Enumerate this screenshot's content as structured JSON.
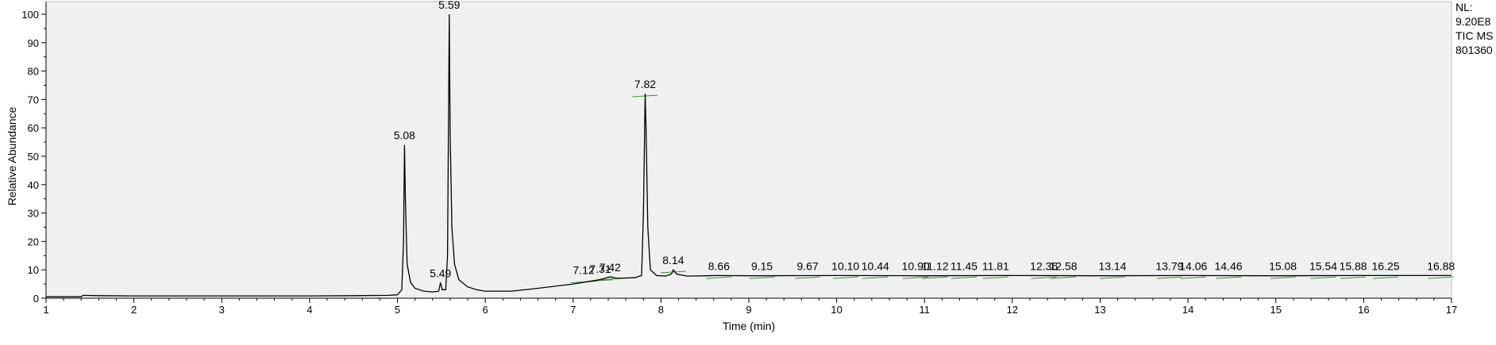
{
  "chart_data": {
    "type": "line",
    "xlabel": "Time (min)",
    "ylabel": "Relative Abundance",
    "xlim": [
      1,
      17
    ],
    "ylim": [
      0,
      100
    ],
    "x_ticks": [
      1,
      2,
      3,
      4,
      5,
      6,
      7,
      8,
      9,
      10,
      11,
      12,
      13,
      14,
      15,
      16,
      17
    ],
    "y_ticks": [
      0,
      10,
      20,
      30,
      40,
      50,
      60,
      70,
      80,
      90,
      100
    ],
    "legend_placement": "none",
    "grid": false,
    "line_color": "#000000",
    "baseline_color": "#3a8f3a",
    "plot_background": "#f0f0f0",
    "info_text": [
      "NL:",
      "9.20E8",
      "TIC  MS",
      "801360"
    ],
    "peaks": [
      {
        "x": 5.08,
        "y": 54,
        "label": "5.08"
      },
      {
        "x": 5.49,
        "y": 5.5,
        "label": "5.49"
      },
      {
        "x": 5.59,
        "y": 100,
        "label": "5.59"
      },
      {
        "x": 7.12,
        "y": 6.5,
        "label": "7.12"
      },
      {
        "x": 7.31,
        "y": 7.0,
        "label": "7.31"
      },
      {
        "x": 7.42,
        "y": 7.5,
        "label": "7.42"
      },
      {
        "x": 7.82,
        "y": 72,
        "label": "7.82"
      },
      {
        "x": 8.14,
        "y": 10,
        "label": "8.14"
      },
      {
        "x": 8.66,
        "y": 8.0,
        "label": "8.66"
      },
      {
        "x": 9.15,
        "y": 8.0,
        "label": "9.15"
      },
      {
        "x": 9.67,
        "y": 8.0,
        "label": "9.67"
      },
      {
        "x": 10.1,
        "y": 8.0,
        "label": "10.10"
      },
      {
        "x": 10.44,
        "y": 8.0,
        "label": "10.44"
      },
      {
        "x": 10.9,
        "y": 8.0,
        "label": "10.90"
      },
      {
        "x": 11.12,
        "y": 8.0,
        "label": "11.12"
      },
      {
        "x": 11.45,
        "y": 8.0,
        "label": "11.45"
      },
      {
        "x": 11.81,
        "y": 8.0,
        "label": "11.81"
      },
      {
        "x": 12.36,
        "y": 8.0,
        "label": "12.36"
      },
      {
        "x": 12.58,
        "y": 8.0,
        "label": "12.58"
      },
      {
        "x": 13.14,
        "y": 8.0,
        "label": "13.14"
      },
      {
        "x": 13.79,
        "y": 8.0,
        "label": "13.79"
      },
      {
        "x": 14.06,
        "y": 8.0,
        "label": "14.06"
      },
      {
        "x": 14.46,
        "y": 8.0,
        "label": "14.46"
      },
      {
        "x": 15.08,
        "y": 8.0,
        "label": "15.08"
      },
      {
        "x": 15.54,
        "y": 8.0,
        "label": "15.54"
      },
      {
        "x": 15.88,
        "y": 8.0,
        "label": "15.88"
      },
      {
        "x": 16.25,
        "y": 8.0,
        "label": "16.25"
      },
      {
        "x": 16.88,
        "y": 8.0,
        "label": "16.88"
      }
    ],
    "trace": [
      [
        1.0,
        0.5
      ],
      [
        1.4,
        0.5
      ],
      [
        1.42,
        1.0
      ],
      [
        1.6,
        0.9
      ],
      [
        2.0,
        0.8
      ],
      [
        3.0,
        0.8
      ],
      [
        4.0,
        0.8
      ],
      [
        4.5,
        0.9
      ],
      [
        4.9,
        1.0
      ],
      [
        5.0,
        1.2
      ],
      [
        5.05,
        3.0
      ],
      [
        5.07,
        20
      ],
      [
        5.08,
        54
      ],
      [
        5.09,
        35
      ],
      [
        5.11,
        12
      ],
      [
        5.15,
        5.5
      ],
      [
        5.2,
        3.5
      ],
      [
        5.3,
        2.5
      ],
      [
        5.4,
        2.2
      ],
      [
        5.47,
        2.5
      ],
      [
        5.49,
        5.5
      ],
      [
        5.51,
        3.0
      ],
      [
        5.55,
        3.0
      ],
      [
        5.57,
        15
      ],
      [
        5.59,
        100
      ],
      [
        5.6,
        58
      ],
      [
        5.62,
        25
      ],
      [
        5.65,
        12
      ],
      [
        5.7,
        6.5
      ],
      [
        5.8,
        4.0
      ],
      [
        5.9,
        3.0
      ],
      [
        6.0,
        2.5
      ],
      [
        6.3,
        2.5
      ],
      [
        6.6,
        3.5
      ],
      [
        7.0,
        5.0
      ],
      [
        7.3,
        6.5
      ],
      [
        7.42,
        7.5
      ],
      [
        7.5,
        7.0
      ],
      [
        7.7,
        7.2
      ],
      [
        7.78,
        8.0
      ],
      [
        7.8,
        30
      ],
      [
        7.82,
        72
      ],
      [
        7.83,
        60
      ],
      [
        7.85,
        25
      ],
      [
        7.88,
        10
      ],
      [
        7.95,
        8.0
      ],
      [
        8.05,
        7.8
      ],
      [
        8.12,
        8.5
      ],
      [
        8.14,
        10
      ],
      [
        8.18,
        8.5
      ],
      [
        8.3,
        7.8
      ],
      [
        8.66,
        8.0
      ],
      [
        9.0,
        7.9
      ],
      [
        10.0,
        8.0
      ],
      [
        11.0,
        7.9
      ],
      [
        12.0,
        8.0
      ],
      [
        13.0,
        7.9
      ],
      [
        14.0,
        8.0
      ],
      [
        15.0,
        7.9
      ],
      [
        16.0,
        8.0
      ],
      [
        17.0,
        8.0
      ]
    ]
  }
}
